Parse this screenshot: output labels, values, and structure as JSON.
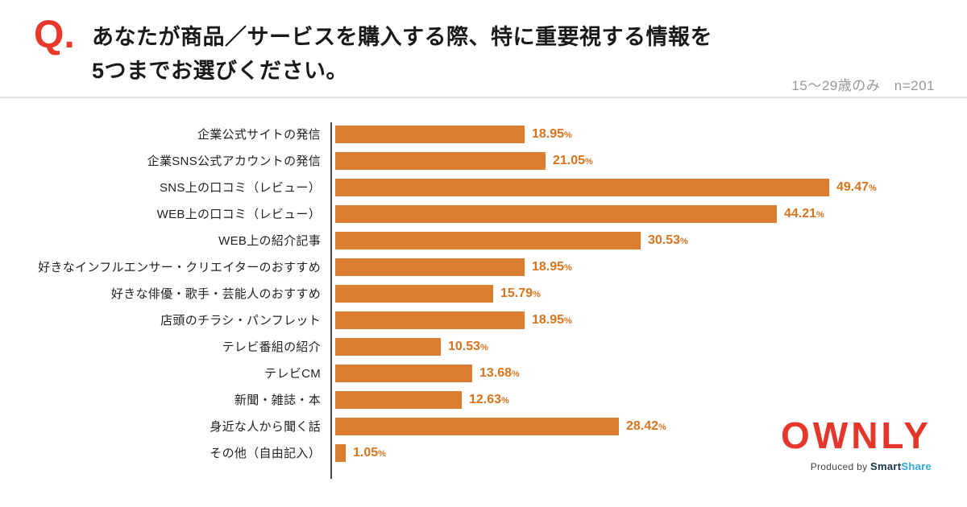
{
  "header": {
    "q_mark": "Q.",
    "title_line1": "あなたが商品／サービスを購入する際、特に重要視する情報を",
    "title_line2": "5つまでお選びください。",
    "note": "15〜29歳のみ　n=201"
  },
  "chart_data": {
    "type": "bar",
    "orientation": "horizontal",
    "title": "あなたが商品／サービスを購入する際、特に重要視する情報を5つまでお選びください。",
    "subtitle": "15〜29歳のみ n=201",
    "categories": [
      "企業公式サイトの発信",
      "企業SNS公式アカウントの発信",
      "SNS上の口コミ（レビュー）",
      "WEB上の口コミ（レビュー）",
      "WEB上の紹介記事",
      "好きなインフルエンサー・クリエイターのおすすめ",
      "好きな俳優・歌手・芸能人のおすすめ",
      "店頭のチラシ・パンフレット",
      "テレビ番組の紹介",
      "テレビCM",
      "新聞・雑誌・本",
      "身近な人から聞く話",
      "その他（自由記入）"
    ],
    "values": [
      18.95,
      21.05,
      49.47,
      44.21,
      30.53,
      18.95,
      15.79,
      18.95,
      10.53,
      13.68,
      12.63,
      28.42,
      1.05
    ],
    "value_suffix": "%",
    "xlim": [
      0,
      50
    ],
    "grid": false,
    "legend": "none",
    "bar_color": "#DC7E2F",
    "value_label_color": "#D9731C",
    "axis_color": "#4a4a4a"
  },
  "footer": {
    "logo": "OWNLY",
    "produced_by": "Produced by ",
    "brand_smart": "Smart",
    "brand_share": "Share"
  },
  "colors": {
    "accent_red": "#E8392B",
    "note_gray": "#999999",
    "separator": "#e4e4e4"
  }
}
